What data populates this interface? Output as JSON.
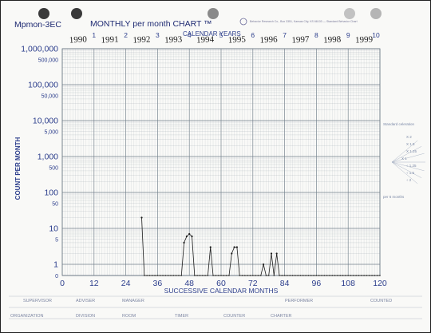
{
  "form": {
    "id": "Mpmon-3EC",
    "title": "MONTHLY per month CHART ™",
    "calendar_years_label": "CALENDAR YEARS",
    "publisher_fine_print": "Behavior Research Co., Box 3351, Kansas City, KS 66103 — Standard Behavior Chart",
    "sheet_markers": [
      "1",
      "2",
      "3",
      "4",
      "5",
      "6",
      "7",
      "8",
      "9",
      "10"
    ],
    "handwritten_years": [
      "1990",
      "1991",
      "1992",
      "1993",
      "1994",
      "1995",
      "1996",
      "1997",
      "1998",
      "1999"
    ],
    "celeration_fan": {
      "title": "Standard celeration",
      "labels": [
        "X 2",
        "X 1.5",
        "X 1.25",
        "X 1",
        "÷ 1.25",
        "÷ 1.5",
        "÷ 2"
      ],
      "footer": "per 6 months"
    },
    "footer_row1": [
      "SUPERVISOR",
      "ADVISER",
      "MANAGER",
      "PERFORMER",
      "COUNTED"
    ],
    "footer_row2": [
      "ORGANIZATION",
      "DIVISION",
      "ROOM",
      "TIMER",
      "COUNTER",
      "CHARTER"
    ]
  },
  "colors": {
    "grid": "#8e9aa4",
    "grid_major": "#6b7985",
    "axis_text": "#2c3e8c",
    "data": "#1c1c1c",
    "handwriting": "#1a1a1a"
  },
  "chart_data": {
    "type": "line",
    "xlabel": "SUCCESSIVE CALENDAR MONTHS",
    "ylabel": "COUNT PER MONTH",
    "y_scale": "log",
    "xlim": [
      0,
      120
    ],
    "x_ticks": [
      0,
      12,
      24,
      36,
      48,
      60,
      72,
      84,
      96,
      108,
      120
    ],
    "x_tick_labels": [
      "0",
      "12",
      "24",
      "36",
      "48",
      "60",
      "72",
      "84",
      "96",
      "108",
      "120"
    ],
    "y_ticks": [
      0,
      1,
      5,
      10,
      50,
      100,
      500,
      1000,
      5000,
      10000,
      50000,
      100000,
      500000,
      1000000
    ],
    "y_tick_labels": [
      "0",
      "1",
      "5",
      "10",
      "50",
      "100",
      "500",
      "1,000",
      "5,000",
      "10,000",
      "50,000",
      "100,000",
      "500,000",
      "1,000,000"
    ],
    "grid": true,
    "series": [
      {
        "x": [
          30,
          31,
          32,
          33,
          34,
          35,
          36,
          37,
          38,
          39,
          40,
          41,
          42,
          43,
          44,
          45,
          46,
          47,
          48,
          49,
          50,
          51,
          52,
          53,
          54,
          55,
          56,
          57,
          58,
          59,
          60,
          61,
          62,
          63,
          64,
          65,
          66,
          67,
          68,
          69,
          70,
          71,
          72,
          73,
          74,
          75,
          76,
          77,
          78,
          79,
          80,
          81,
          82,
          83,
          84,
          85,
          86,
          87,
          88,
          89,
          90,
          91,
          92,
          93,
          94,
          95,
          96,
          97,
          98,
          99,
          100,
          101,
          102,
          103,
          104,
          105,
          106,
          107,
          108,
          109,
          110,
          111,
          112,
          113,
          114,
          115,
          116,
          117,
          118,
          119,
          120
        ],
        "y": [
          20,
          0,
          0,
          0,
          0,
          0,
          0,
          0,
          0,
          0,
          0,
          0,
          0,
          0,
          0,
          0,
          4,
          6,
          7,
          6,
          0,
          0,
          0,
          0,
          0,
          0,
          3,
          0,
          0,
          0,
          0,
          0,
          0,
          0,
          2,
          3,
          3,
          0,
          0,
          0,
          0,
          0,
          0,
          0,
          0,
          0,
          1,
          0,
          0,
          2,
          0,
          2,
          0,
          0,
          0,
          0,
          0,
          0,
          0,
          0,
          0,
          0,
          0,
          0,
          0,
          0,
          0,
          0,
          0,
          0,
          0,
          0,
          0,
          0,
          0,
          0,
          0,
          0,
          0,
          0,
          0,
          0,
          0,
          0,
          0,
          0,
          0,
          0,
          0,
          0,
          0
        ]
      }
    ]
  }
}
